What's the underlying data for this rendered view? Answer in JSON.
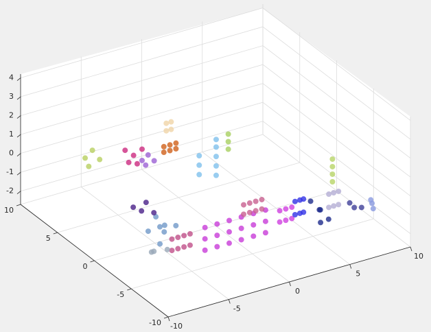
{
  "chart_data": {
    "type": "scatter3d",
    "xlim": [
      -10,
      10
    ],
    "ylim": [
      -10,
      10
    ],
    "zlim": [
      -2.7,
      4.2
    ],
    "xticks": [
      -10,
      -5,
      0,
      5,
      10
    ],
    "yticks": [
      -10,
      -5,
      0,
      5,
      10
    ],
    "zticks": [
      -2,
      -1,
      0,
      1,
      2,
      3,
      4
    ],
    "grid": true,
    "series": [
      {
        "color": "#c83cd8",
        "x": [
          -3,
          -2,
          -1,
          0,
          1,
          2,
          -3,
          -2,
          -1,
          0,
          1,
          2,
          -3,
          -2,
          -1,
          0,
          1,
          2
        ],
        "y": [
          -3.5,
          -3.5,
          -3.5,
          -3.5,
          -3.5,
          -3.5,
          -3.5,
          -3.5,
          -3.5,
          -3.5,
          -3.5,
          -3.5,
          -3.5,
          -3.5,
          -3.5,
          -3.5,
          -3.5,
          -3.5
        ],
        "z": [
          -2.4,
          -2.4,
          -2.4,
          -2.4,
          -2.4,
          -2.4,
          -1.8,
          -1.8,
          -1.8,
          -1.8,
          -1.8,
          -1.8,
          -1.2,
          -1.2,
          -1.2,
          -1.2,
          -1.2,
          -1.2
        ]
      },
      {
        "color": "#c0508a",
        "x": [
          -5,
          -4.5,
          -4,
          -3.5,
          -5,
          -4.5,
          -4,
          -3.5
        ],
        "y": [
          -2.3,
          -2.3,
          -2.3,
          -2.3,
          -2.3,
          -2.3,
          -2.3,
          -2.3
        ],
        "z": [
          -2.4,
          -2.4,
          -2.4,
          -2.4,
          -1.8,
          -1.8,
          -1.8,
          -1.8
        ]
      },
      {
        "color": "#7098c8",
        "x": [
          -5.8,
          -5.2,
          -4.6,
          -4,
          -4.8,
          -5.5,
          -4.2
        ],
        "y": [
          -0.4,
          -1,
          -0.6,
          -1.2,
          0.2,
          -1.5,
          0
        ],
        "z": [
          -1.8,
          -1.5,
          -2,
          -1.6,
          -1.4,
          -2.2,
          -1.9
        ]
      },
      {
        "color": "#4a2088",
        "x": [
          -6,
          -5.5,
          -5,
          -4.6
        ],
        "y": [
          1.3,
          1,
          1.2,
          0.8
        ],
        "z": [
          -1,
          -1.2,
          -0.9,
          -1.4
        ]
      },
      {
        "color": "#98a8b8",
        "x": [
          -6.5,
          -6,
          -5.5
        ],
        "y": [
          -2,
          -1.5,
          -2.5
        ],
        "z": [
          -2.3,
          -2.5,
          -2.2
        ]
      },
      {
        "color": "#c86090",
        "x": [
          0.8,
          1.3,
          1.8,
          2.3,
          0.8,
          1.3,
          1.8,
          2.3
        ],
        "y": [
          -2.5,
          -2.5,
          -2.5,
          -2.5,
          -2.5,
          -2.5,
          -2.5,
          -2.5
        ],
        "z": [
          -1,
          -1,
          -1,
          -1,
          -1.5,
          -1.5,
          -1.5,
          -1.5
        ]
      },
      {
        "color": "#d040e0",
        "x": [
          2.5,
          3,
          3.5,
          2.5,
          3,
          3.5
        ],
        "y": [
          -4.6,
          -4.6,
          -4.6,
          -4.6,
          -4.6,
          -4.6
        ],
        "z": [
          -1.6,
          -1.6,
          -1.6,
          -1,
          -1,
          -1
        ]
      },
      {
        "color": "#3232e6",
        "x": [
          3.4,
          3.8,
          4.1,
          3.4,
          3.8,
          4.1
        ],
        "y": [
          -5.2,
          -5.2,
          -5.2,
          -5.2,
          -5.2,
          -5.2
        ],
        "z": [
          -1.2,
          -1.2,
          -1.2,
          -0.5,
          -0.5,
          -0.5
        ]
      },
      {
        "color": "#1e2c8c",
        "x": [
          4.5,
          5,
          5.5,
          5.2,
          4.8
        ],
        "y": [
          -5.5,
          -6,
          -6.3,
          -5.7,
          -6.2
        ],
        "z": [
          -0.6,
          -1,
          -1.5,
          -1.8,
          -0.9
        ]
      },
      {
        "color": "#b4aed4",
        "x": [
          5.7,
          6.1,
          6.5,
          5.7,
          6.1,
          6.5
        ],
        "y": [
          -6,
          -6,
          -6,
          -6,
          -6,
          -6
        ],
        "z": [
          -1,
          -1,
          -1,
          -0.3,
          -0.3,
          -0.3
        ]
      },
      {
        "color": "#404098",
        "x": [
          7.3,
          7.8,
          8.1
        ],
        "y": [
          -6.2,
          -6,
          -6.5
        ],
        "z": [
          -1,
          -1.4,
          -1.3
        ]
      },
      {
        "color": "#8a9ae0",
        "x": [
          8.8,
          9,
          8.9
        ],
        "y": [
          -6.6,
          -6.6,
          -6.6
        ],
        "z": [
          -1,
          -1.5,
          -1.2
        ]
      },
      {
        "color": "#b8d468",
        "x": [
          6,
          6,
          6,
          6
        ],
        "y": [
          -6,
          -6,
          -6,
          -6
        ],
        "z": [
          0.3,
          0.7,
          1.1,
          1.5
        ]
      },
      {
        "color": "#80c0ec",
        "x": [
          1.7,
          1.7,
          1.7,
          3.1,
          3.1,
          3.1,
          3.1,
          3.1
        ],
        "y": [
          5,
          5,
          5,
          5,
          5,
          5,
          5,
          5
        ],
        "z": [
          -1.8,
          -1.3,
          -0.8,
          -2.1,
          -1.6,
          -1.1,
          -0.6,
          -0.2
        ]
      },
      {
        "color": "#a8d060",
        "x": [
          4.1,
          4.1,
          4.1
        ],
        "y": [
          5,
          5,
          5
        ],
        "z": [
          -0.9,
          -0.5,
          -0.1
        ]
      },
      {
        "color": "#d0601a",
        "x": [
          0,
          0.5,
          1,
          0,
          0.5,
          1
        ],
        "y": [
          7,
          7,
          7,
          7,
          7,
          7
        ],
        "z": [
          -0.9,
          -0.9,
          -0.9,
          -0.6,
          -0.6,
          -0.6
        ]
      },
      {
        "color": "#f0d4a8",
        "x": [
          0.2,
          0.6,
          0.2,
          0.6
        ],
        "y": [
          7,
          7,
          7,
          7
        ],
        "z": [
          0.2,
          0.2,
          0.6,
          0.6
        ]
      },
      {
        "color": "#cc2a80",
        "x": [
          -3.2,
          -2.5,
          -1.8,
          -2.9,
          -2.2
        ],
        "y": [
          7,
          7,
          7,
          7,
          7
        ],
        "z": [
          -0.2,
          -0.6,
          -0.4,
          -0.9,
          -1.1
        ]
      },
      {
        "color": "#9c62d4",
        "x": [
          -1.8,
          -1.3,
          -0.8,
          -1.5
        ],
        "y": [
          7,
          7,
          7,
          7
        ],
        "z": [
          -1,
          -0.8,
          -1.2,
          -1.3
        ]
      },
      {
        "color": "#b8d060",
        "x": [
          -6.5,
          -5.9,
          -5.3,
          -6.2
        ],
        "y": [
          7,
          7,
          7,
          7
        ],
        "z": [
          0,
          0.3,
          -0.3,
          -0.5
        ]
      }
    ]
  }
}
